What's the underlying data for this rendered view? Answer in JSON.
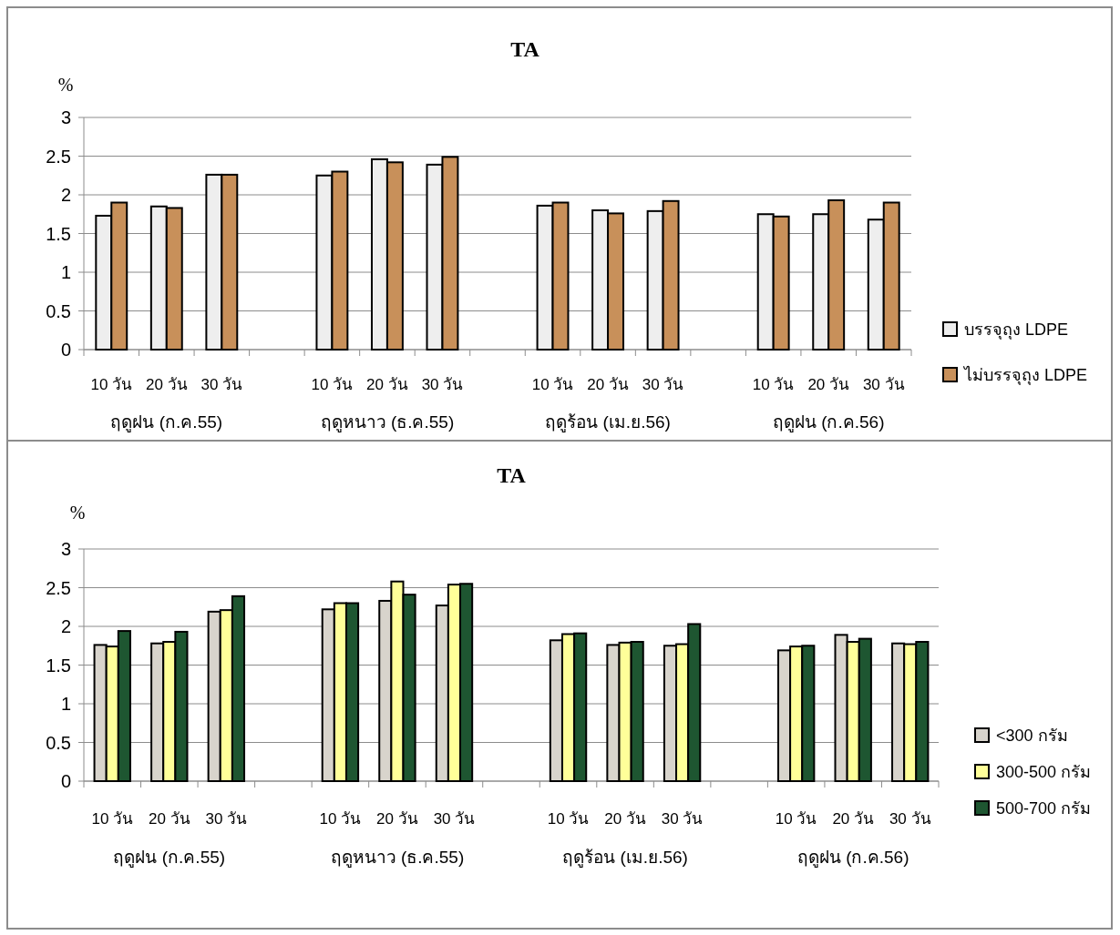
{
  "chart_data": [
    {
      "type": "bar",
      "title": "TA",
      "ylabel": "%",
      "categories": [
        "10 วัน",
        "20 วัน",
        "30 วัน",
        null,
        "10 วัน",
        "20 วัน",
        "30 วัน",
        null,
        "10 วัน",
        "20 วัน",
        "30 วัน",
        null,
        "10 วัน",
        "20 วัน",
        "30 วัน"
      ],
      "series": [
        {
          "name": "บรรจุถุง LDPE",
          "color": "#eeeeee",
          "values": [
            1.73,
            1.85,
            2.26,
            null,
            2.25,
            2.46,
            2.39,
            null,
            1.86,
            1.8,
            1.79,
            null,
            1.75,
            1.75,
            1.68
          ]
        },
        {
          "name": "ไม่บรรจุถุง LDPE",
          "color": "#c8905a",
          "values": [
            1.9,
            1.83,
            2.26,
            null,
            2.3,
            2.42,
            2.49,
            null,
            1.9,
            1.76,
            1.92,
            null,
            1.72,
            1.93,
            1.9
          ]
        }
      ],
      "annotations": [
        "ฤดูฝน (ก.ค.55)",
        "ฤดูหนาว (ธ.ค.55)",
        "ฤดูร้อน (เม.ย.56)",
        "ฤดูฝน (ก.ค.56)"
      ],
      "ylim": [
        0,
        3
      ],
      "yticks": [
        0,
        0.5,
        1,
        1.5,
        2,
        2.5,
        3
      ],
      "grid": "y",
      "legend": "right"
    },
    {
      "type": "bar",
      "title": "TA",
      "ylabel": "%",
      "categories": [
        "10 วัน",
        "20 วัน",
        "30 วัน",
        null,
        "10 วัน",
        "20 วัน",
        "30 วัน",
        null,
        "10 วัน",
        "20 วัน",
        "30 วัน",
        null,
        "10 วัน",
        "20 วัน",
        "30 วัน"
      ],
      "series": [
        {
          "name": "<300 กรัม",
          "color": "#d8d4cc",
          "values": [
            1.76,
            1.78,
            2.19,
            null,
            2.22,
            2.33,
            2.27,
            null,
            1.82,
            1.76,
            1.75,
            null,
            1.69,
            1.89,
            1.78
          ]
        },
        {
          "name": "300-500 กรัม",
          "color": "#ffff99",
          "values": [
            1.74,
            1.8,
            2.21,
            null,
            2.3,
            2.58,
            2.54,
            null,
            1.9,
            1.79,
            1.77,
            null,
            1.74,
            1.8,
            1.77
          ]
        },
        {
          "name": "500-700 กรัม",
          "color": "#1e5631",
          "values": [
            1.94,
            1.93,
            2.39,
            null,
            2.3,
            2.41,
            2.55,
            null,
            1.91,
            1.8,
            2.03,
            null,
            1.75,
            1.84,
            1.8
          ]
        }
      ],
      "annotations": [
        "ฤดูฝน (ก.ค.55)",
        "ฤดูหนาว (ธ.ค.55)",
        "ฤดูร้อน (เม.ย.56)",
        "ฤดูฝน (ก.ค.56)"
      ],
      "ylim": [
        0,
        3
      ],
      "yticks": [
        0,
        0.5,
        1,
        1.5,
        2,
        2.5,
        3
      ],
      "grid": "y",
      "legend": "right"
    }
  ]
}
